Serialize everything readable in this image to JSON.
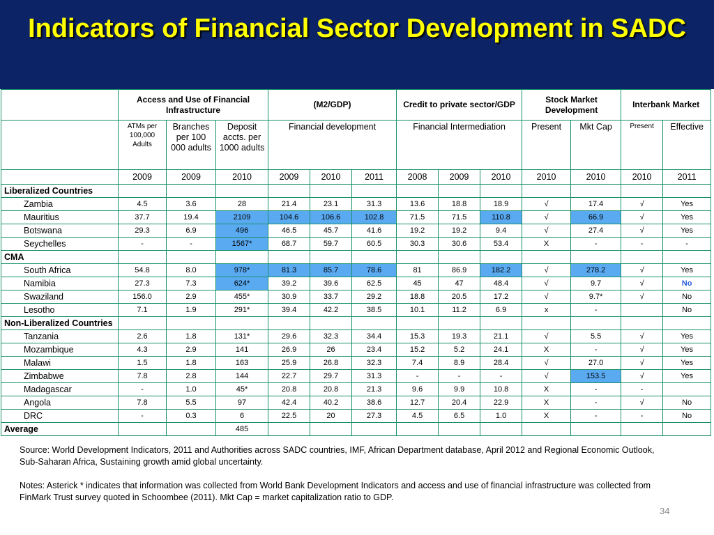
{
  "title": "Indicators of Financial Sector Development in SADC",
  "header": {
    "groups": {
      "access": "Access and Use of Financial Infrastructure",
      "m2": "(M2/GDP)",
      "credit": "Credit to private sector/GDP",
      "stock": "Stock Market Development",
      "interbank": "Interbank Market"
    },
    "sub": {
      "atms": "ATMs per 100,000 Adults",
      "branches": "Branches per 100 000 adults",
      "deposit": "Deposit accts. per 1000 adults",
      "fin_dev": "Financial development",
      "fin_int": "Financial Intermediation",
      "present": "Present",
      "mkt_cap": "Mkt Cap",
      "present2": "Present",
      "effective": "Effective"
    },
    "years": [
      "2009",
      "2009",
      "2010",
      "2009",
      "2010",
      "2011",
      "2008",
      "2009",
      "2010",
      "2010",
      "2010",
      "2010",
      "2011"
    ]
  },
  "groups": [
    {
      "label": "Liberalized Countries",
      "rows": [
        {
          "name": "Zambia",
          "cells": [
            "4.5",
            "3.6",
            "28",
            "21.4",
            "23.1",
            "31.3",
            "13.6",
            "18.8",
            "18.9",
            "√",
            "17.4",
            "√",
            "Yes"
          ]
        },
        {
          "name": "Mauritius",
          "cells": [
            "37.7",
            "19.4",
            "2109",
            "104.6",
            "106.6",
            "102.8",
            "71.5",
            "71.5",
            "110.8",
            "√",
            "66.9",
            "√",
            "Yes"
          ]
        },
        {
          "name": "Botswana",
          "cells": [
            "29.3",
            "6.9",
            "496",
            "46.5",
            "45.7",
            "41.6",
            "19.2",
            "19.2",
            "9.4",
            "√",
            "27.4",
            "√",
            "Yes"
          ]
        },
        {
          "name": "Seychelles",
          "cells": [
            "-",
            "-",
            "1567*",
            "68.7",
            "59.7",
            "60.5",
            "30.3",
            "30.6",
            "53.4",
            "X",
            "-",
            "-",
            "-"
          ]
        }
      ]
    },
    {
      "label": "CMA",
      "rows": [
        {
          "name": "South Africa",
          "cells": [
            "54.8",
            "8.0",
            "978*",
            "81.3",
            "85.7",
            "78.6",
            "81",
            "86.9",
            "182.2",
            "√",
            "278.2",
            "√",
            "Yes"
          ]
        },
        {
          "name": "Namibia",
          "cells": [
            "27.3",
            "7.3",
            "624*",
            "39.2",
            "39.6",
            "62.5",
            "45",
            "47",
            "48.4",
            "√",
            "9.7",
            "√",
            "No"
          ]
        },
        {
          "name": "Swaziland",
          "cells": [
            "156.0",
            "2.9",
            "455*",
            "30.9",
            "33.7",
            "29.2",
            "18.8",
            "20.5",
            "17.2",
            "√",
            "9.7*",
            "√",
            "No"
          ]
        },
        {
          "name": "Lesotho",
          "cells": [
            "7.1",
            "1.9",
            "291*",
            "39.4",
            "42.2",
            "38.5",
            "10.1",
            "11.2",
            "6.9",
            "x",
            "-",
            "",
            "No"
          ]
        }
      ]
    },
    {
      "label": "Non-Liberalized Countries",
      "rows": [
        {
          "name": "Tanzania",
          "cells": [
            "2.6",
            "1.8",
            "131*",
            "29.6",
            "32.3",
            "34.4",
            "15.3",
            "19.3",
            "21.1",
            "√",
            "5.5",
            "√",
            "Yes"
          ]
        },
        {
          "name": "Mozambique",
          "cells": [
            "4.3",
            "2.9",
            "141",
            "26.9",
            "26",
            "23.4",
            "15.2",
            "5.2",
            "24.1",
            "X",
            "-",
            "√",
            "Yes"
          ]
        },
        {
          "name": "Malawi",
          "cells": [
            "1.5",
            "1.8",
            "163",
            "25.9",
            "26.8",
            "32.3",
            "7.4",
            "8.9",
            "28.4",
            "√",
            "27.0",
            "√",
            "Yes"
          ]
        },
        {
          "name": "Zimbabwe",
          "cells": [
            "7.8",
            "2.8",
            "144",
            "22.7",
            "29.7",
            "31.3",
            "-",
            "-",
            "-",
            "√",
            "153.5",
            "√",
            "Yes"
          ]
        },
        {
          "name": "Madagascar",
          "cells": [
            "-",
            "1.0",
            "45*",
            "20.8",
            "20.8",
            "21.3",
            "9.6",
            "9.9",
            "10.8",
            "X",
            "-",
            "-",
            ""
          ]
        },
        {
          "name": "Angola",
          "cells": [
            "7.8",
            "5.5",
            "97",
            "42.4",
            "40.2",
            "38.6",
            "12.7",
            "20.4",
            "22.9",
            "X",
            "-",
            "√",
            "No"
          ]
        },
        {
          "name": "DRC",
          "cells": [
            "-",
            "0.3",
            "6",
            "22.5",
            "20",
            "27.3",
            "4.5",
            "6.5",
            "1.0",
            "X",
            "-",
            "-",
            "No"
          ]
        }
      ]
    }
  ],
  "average": {
    "label": "Average",
    "cells": [
      "",
      "",
      "485",
      "",
      "",
      "",
      "",
      "",
      "",
      "",
      "",
      "",
      ""
    ]
  },
  "footer": {
    "source": "Source: World Development Indicators, 2011 and Authorities across SADC countries, IMF, African Department database, April 2012 and Regional Economic Outlook, Sub-Saharan Africa, Sustaining growth amid global uncertainty.",
    "notes": "Notes: Asterick * indicates that information was collected from World Bank Development Indicators and access and use of financial infrastructure was collected from FinMark Trust survey quoted in Schoombee (2011).  Mkt Cap = market capitalization ratio to GDP."
  },
  "page_number": "34",
  "colors": {
    "title_bg": "#0c2466",
    "title_text": "#ffff00",
    "highlight": "#5aaaf2",
    "border": "#178f6b"
  }
}
